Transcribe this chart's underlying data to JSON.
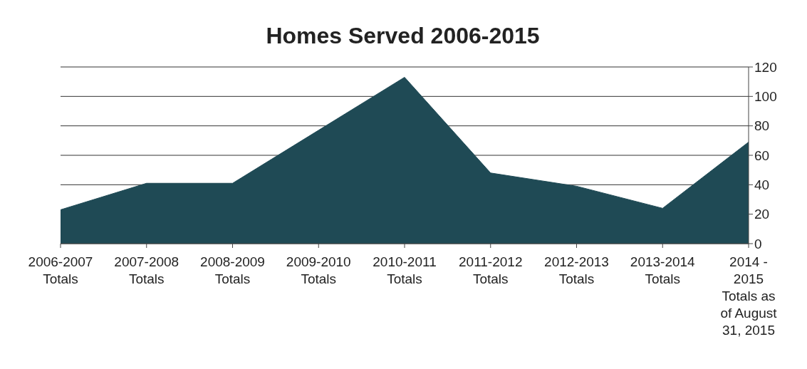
{
  "chart_data": {
    "type": "area",
    "title": "Homes Served 2006-2015",
    "categories": [
      "2006-2007 Totals",
      "2007-2008 Totals",
      "2008-2009 Totals",
      "2009-2010 Totals",
      "2010-2011 Totals",
      "2011-2012 Totals",
      "2012-2013 Totals",
      "2013-2014 Totals",
      "2014 - 2015 Totals as of August 31, 2015"
    ],
    "values": [
      23,
      41,
      41,
      77,
      113,
      48,
      39,
      24,
      69
    ],
    "color": "#1f4a55",
    "ylim": [
      0,
      120
    ],
    "yticks": [
      0,
      20,
      40,
      60,
      80,
      100,
      120
    ],
    "grid": "y",
    "legend": false
  }
}
